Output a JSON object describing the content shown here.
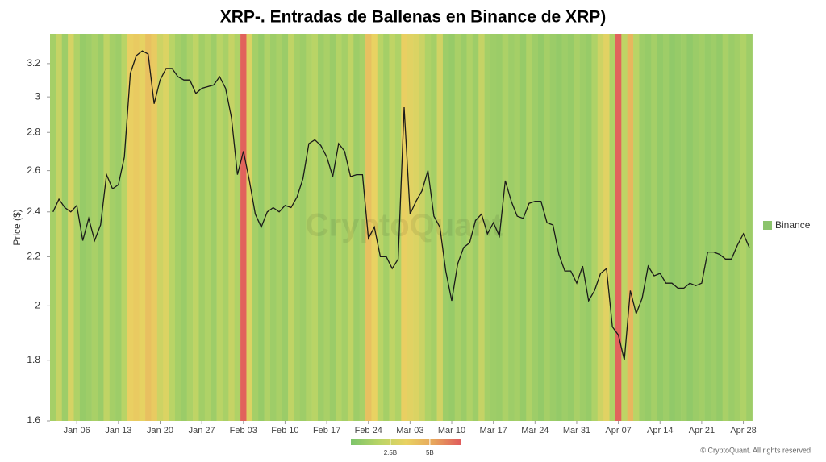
{
  "chart_data": {
    "type": "line",
    "title": "XRP-. Entradas de Ballenas en Binance de XRP)",
    "ylabel": "Price ($)",
    "watermark": "CryptoQuant",
    "copyright": "© CryptoQuant. All rights reserved",
    "color": "#1a1a1a",
    "log_y": true,
    "x": [
      2,
      3,
      4,
      5,
      6,
      7,
      8,
      9,
      10,
      11,
      12,
      13,
      14,
      15,
      16,
      17,
      18,
      19,
      20,
      21,
      22,
      23,
      24,
      25,
      26,
      27,
      28,
      29,
      30,
      31,
      32,
      33,
      34,
      35,
      36,
      37,
      38,
      39,
      40,
      41,
      42,
      43,
      44,
      45,
      46,
      47,
      48,
      49,
      50,
      51,
      52,
      53,
      54,
      55,
      56,
      57,
      58,
      59,
      60,
      61,
      62,
      63,
      64,
      65,
      66,
      67,
      68,
      69,
      70,
      71,
      72,
      73,
      74,
      75,
      76,
      77,
      78,
      79,
      80,
      81,
      82,
      83,
      84,
      85,
      86,
      87,
      88,
      89,
      90,
      91,
      92,
      93,
      94,
      95,
      96,
      97,
      98,
      99,
      100,
      101,
      102,
      103,
      104,
      105,
      106,
      107,
      108,
      109,
      110,
      111,
      112,
      113,
      114,
      115,
      116,
      117,
      118,
      119
    ],
    "values": [
      2.4,
      2.46,
      2.42,
      2.4,
      2.43,
      2.27,
      2.37,
      2.27,
      2.34,
      2.58,
      2.51,
      2.53,
      2.67,
      3.14,
      3.25,
      3.28,
      3.26,
      2.96,
      3.1,
      3.17,
      3.17,
      3.12,
      3.1,
      3.1,
      3.02,
      3.05,
      3.06,
      3.07,
      3.12,
      3.05,
      2.88,
      2.58,
      2.7,
      2.55,
      2.39,
      2.33,
      2.4,
      2.42,
      2.4,
      2.43,
      2.42,
      2.47,
      2.56,
      2.74,
      2.76,
      2.73,
      2.67,
      2.57,
      2.74,
      2.7,
      2.57,
      2.58,
      2.58,
      2.28,
      2.33,
      2.2,
      2.2,
      2.15,
      2.19,
      2.94,
      2.39,
      2.45,
      2.5,
      2.6,
      2.38,
      2.33,
      2.14,
      2.02,
      2.17,
      2.24,
      2.26,
      2.36,
      2.39,
      2.3,
      2.35,
      2.29,
      2.55,
      2.45,
      2.38,
      2.37,
      2.44,
      2.45,
      2.45,
      2.35,
      2.34,
      2.21,
      2.14,
      2.14,
      2.09,
      2.16,
      2.02,
      2.06,
      2.13,
      2.15,
      1.92,
      1.89,
      1.8,
      2.06,
      1.97,
      2.03,
      2.16,
      2.12,
      2.13,
      2.09,
      2.09,
      2.07,
      2.07,
      2.09,
      2.08,
      2.09,
      2.22,
      2.22,
      2.21,
      2.19,
      2.19,
      2.25,
      2.3,
      2.24
    ],
    "xlim": [
      1.5,
      120.5
    ],
    "xticks": [
      {
        "value": 6,
        "label": "Jan 06"
      },
      {
        "value": 13,
        "label": "Jan 13"
      },
      {
        "value": 20,
        "label": "Jan 20"
      },
      {
        "value": 27,
        "label": "Jan 27"
      },
      {
        "value": 34,
        "label": "Feb 03"
      },
      {
        "value": 41,
        "label": "Feb 10"
      },
      {
        "value": 48,
        "label": "Feb 17"
      },
      {
        "value": 55,
        "label": "Feb 24"
      },
      {
        "value": 62,
        "label": "Mar 03"
      },
      {
        "value": 69,
        "label": "Mar 10"
      },
      {
        "value": 76,
        "label": "Mar 17"
      },
      {
        "value": 83,
        "label": "Mar 24"
      },
      {
        "value": 90,
        "label": "Mar 31"
      },
      {
        "value": 97,
        "label": "Apr 07"
      },
      {
        "value": 104,
        "label": "Apr 14"
      },
      {
        "value": 111,
        "label": "Apr 21"
      },
      {
        "value": 118,
        "label": "Apr 28"
      }
    ],
    "ylim": [
      1.6,
      3.39
    ],
    "yticks": [
      1.6,
      1.8,
      2,
      2.2,
      2.4,
      2.6,
      2.8,
      3,
      3.2
    ],
    "heatmap": {
      "name": "Binance",
      "color": "#8cc46c",
      "values": [
        1.2,
        2.2,
        1.0,
        2.8,
        1.5,
        0.8,
        1.0,
        1.3,
        0.9,
        2.0,
        1.2,
        1.0,
        1.8,
        3.6,
        3.8,
        3.4,
        4.2,
        3.8,
        2.5,
        3.0,
        1.8,
        1.2,
        0.9,
        1.4,
        2.0,
        1.1,
        1.5,
        1.0,
        1.8,
        1.3,
        2.2,
        1.5,
        6.8,
        3.0,
        1.2,
        0.8,
        1.5,
        1.0,
        1.3,
        0.9,
        2.0,
        1.2,
        1.0,
        1.5,
        1.8,
        1.0,
        1.3,
        0.9,
        1.6,
        1.2,
        2.0,
        1.0,
        1.3,
        4.2,
        3.5,
        1.8,
        1.2,
        2.0,
        1.5,
        3.6,
        3.2,
        3.0,
        2.4,
        1.5,
        1.2,
        2.6,
        1.0,
        0.8,
        1.3,
        0.9,
        1.5,
        1.0,
        2.2,
        1.2,
        1.0,
        0.9,
        1.4,
        1.0,
        1.2,
        0.8,
        1.5,
        1.0,
        0.7,
        1.2,
        0.9,
        0.7,
        1.0,
        0.8,
        1.3,
        1.0,
        0.8,
        1.5,
        2.5,
        3.2,
        1.5,
        6.8,
        2.0,
        4.6,
        1.8,
        1.0,
        0.8,
        1.2,
        0.7,
        1.0,
        0.6,
        0.8,
        1.0,
        0.6,
        0.9,
        1.1,
        0.8,
        1.0,
        0.7,
        1.3,
        0.9,
        1.1,
        1.5,
        1.0
      ],
      "colorlim": [
        0,
        7
      ],
      "colors": [
        "#7cc46a",
        "#b8d466",
        "#e9d262",
        "#e7a55c",
        "#e05a5c"
      ],
      "colorticks": [
        {
          "value": 2.5,
          "label": "2.5B"
        },
        {
          "value": 5,
          "label": "5B"
        }
      ]
    }
  }
}
